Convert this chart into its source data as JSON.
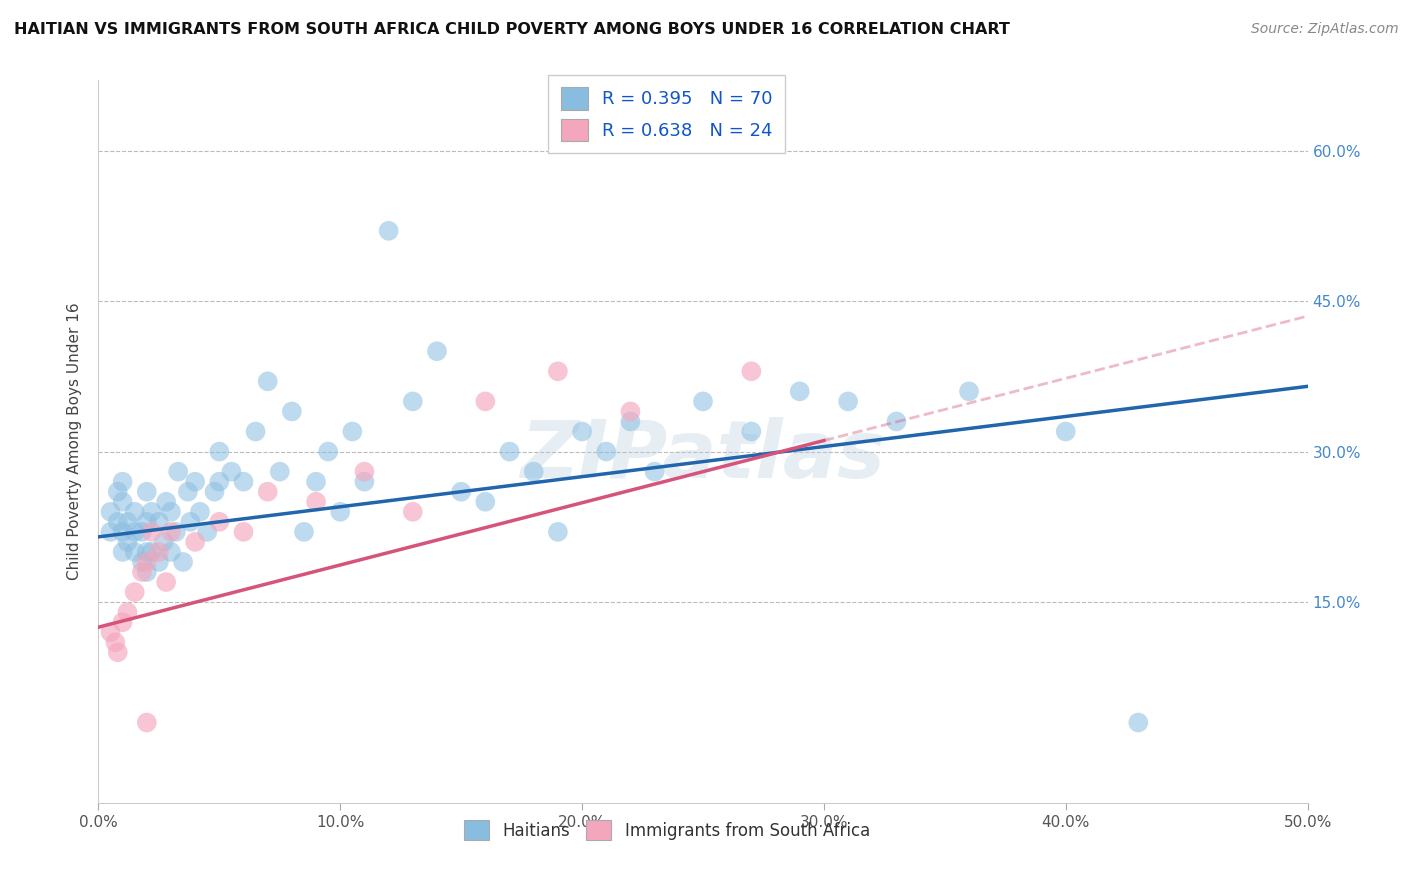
{
  "title": "HAITIAN VS IMMIGRANTS FROM SOUTH AFRICA CHILD POVERTY AMONG BOYS UNDER 16 CORRELATION CHART",
  "source": "Source: ZipAtlas.com",
  "ylabel": "Child Poverty Among Boys Under 16",
  "xlim": [
    0.0,
    0.5
  ],
  "ylim": [
    -0.05,
    0.67
  ],
  "xtick_labels": [
    "0.0%",
    "10.0%",
    "20.0%",
    "30.0%",
    "40.0%",
    "50.0%"
  ],
  "xtick_vals": [
    0.0,
    0.1,
    0.2,
    0.3,
    0.4,
    0.5
  ],
  "ytick_labels": [
    "15.0%",
    "30.0%",
    "45.0%",
    "60.0%"
  ],
  "ytick_vals": [
    0.15,
    0.3,
    0.45,
    0.6
  ],
  "blue_color": "#89bde0",
  "pink_color": "#f4a6bc",
  "blue_line_color": "#2166ac",
  "pink_line_color": "#d6537a",
  "R_blue": 0.395,
  "N_blue": 70,
  "R_pink": 0.638,
  "N_pink": 24,
  "watermark": "ZIPatlas",
  "blue_line_x0": 0.0,
  "blue_line_y0": 0.215,
  "blue_line_x1": 0.5,
  "blue_line_y1": 0.365,
  "pink_line_x0": 0.0,
  "pink_line_y0": 0.125,
  "pink_line_x1": 0.5,
  "pink_line_y1": 0.435,
  "haitians_x": [
    0.005,
    0.005,
    0.008,
    0.008,
    0.01,
    0.01,
    0.01,
    0.01,
    0.012,
    0.012,
    0.015,
    0.015,
    0.015,
    0.018,
    0.018,
    0.02,
    0.02,
    0.02,
    0.02,
    0.022,
    0.022,
    0.025,
    0.025,
    0.027,
    0.028,
    0.03,
    0.03,
    0.032,
    0.033,
    0.035,
    0.037,
    0.038,
    0.04,
    0.042,
    0.045,
    0.048,
    0.05,
    0.05,
    0.055,
    0.06,
    0.065,
    0.07,
    0.075,
    0.08,
    0.085,
    0.09,
    0.095,
    0.1,
    0.105,
    0.11,
    0.12,
    0.13,
    0.14,
    0.15,
    0.16,
    0.17,
    0.18,
    0.19,
    0.2,
    0.21,
    0.22,
    0.23,
    0.25,
    0.27,
    0.29,
    0.31,
    0.33,
    0.36,
    0.4,
    0.43
  ],
  "haitians_y": [
    0.22,
    0.24,
    0.23,
    0.26,
    0.2,
    0.22,
    0.25,
    0.27,
    0.21,
    0.23,
    0.2,
    0.22,
    0.24,
    0.19,
    0.22,
    0.18,
    0.2,
    0.23,
    0.26,
    0.2,
    0.24,
    0.19,
    0.23,
    0.21,
    0.25,
    0.2,
    0.24,
    0.22,
    0.28,
    0.19,
    0.26,
    0.23,
    0.27,
    0.24,
    0.22,
    0.26,
    0.27,
    0.3,
    0.28,
    0.27,
    0.32,
    0.37,
    0.28,
    0.34,
    0.22,
    0.27,
    0.3,
    0.24,
    0.32,
    0.27,
    0.52,
    0.35,
    0.4,
    0.26,
    0.25,
    0.3,
    0.28,
    0.22,
    0.32,
    0.3,
    0.33,
    0.28,
    0.35,
    0.32,
    0.36,
    0.35,
    0.33,
    0.36,
    0.32,
    0.03
  ],
  "sa_x": [
    0.005,
    0.007,
    0.008,
    0.01,
    0.012,
    0.015,
    0.018,
    0.02,
    0.022,
    0.025,
    0.028,
    0.03,
    0.04,
    0.05,
    0.06,
    0.07,
    0.09,
    0.11,
    0.13,
    0.16,
    0.19,
    0.22,
    0.27,
    0.02
  ],
  "sa_y": [
    0.12,
    0.11,
    0.1,
    0.13,
    0.14,
    0.16,
    0.18,
    0.19,
    0.22,
    0.2,
    0.17,
    0.22,
    0.21,
    0.23,
    0.22,
    0.26,
    0.25,
    0.28,
    0.24,
    0.35,
    0.38,
    0.34,
    0.38,
    0.03
  ]
}
